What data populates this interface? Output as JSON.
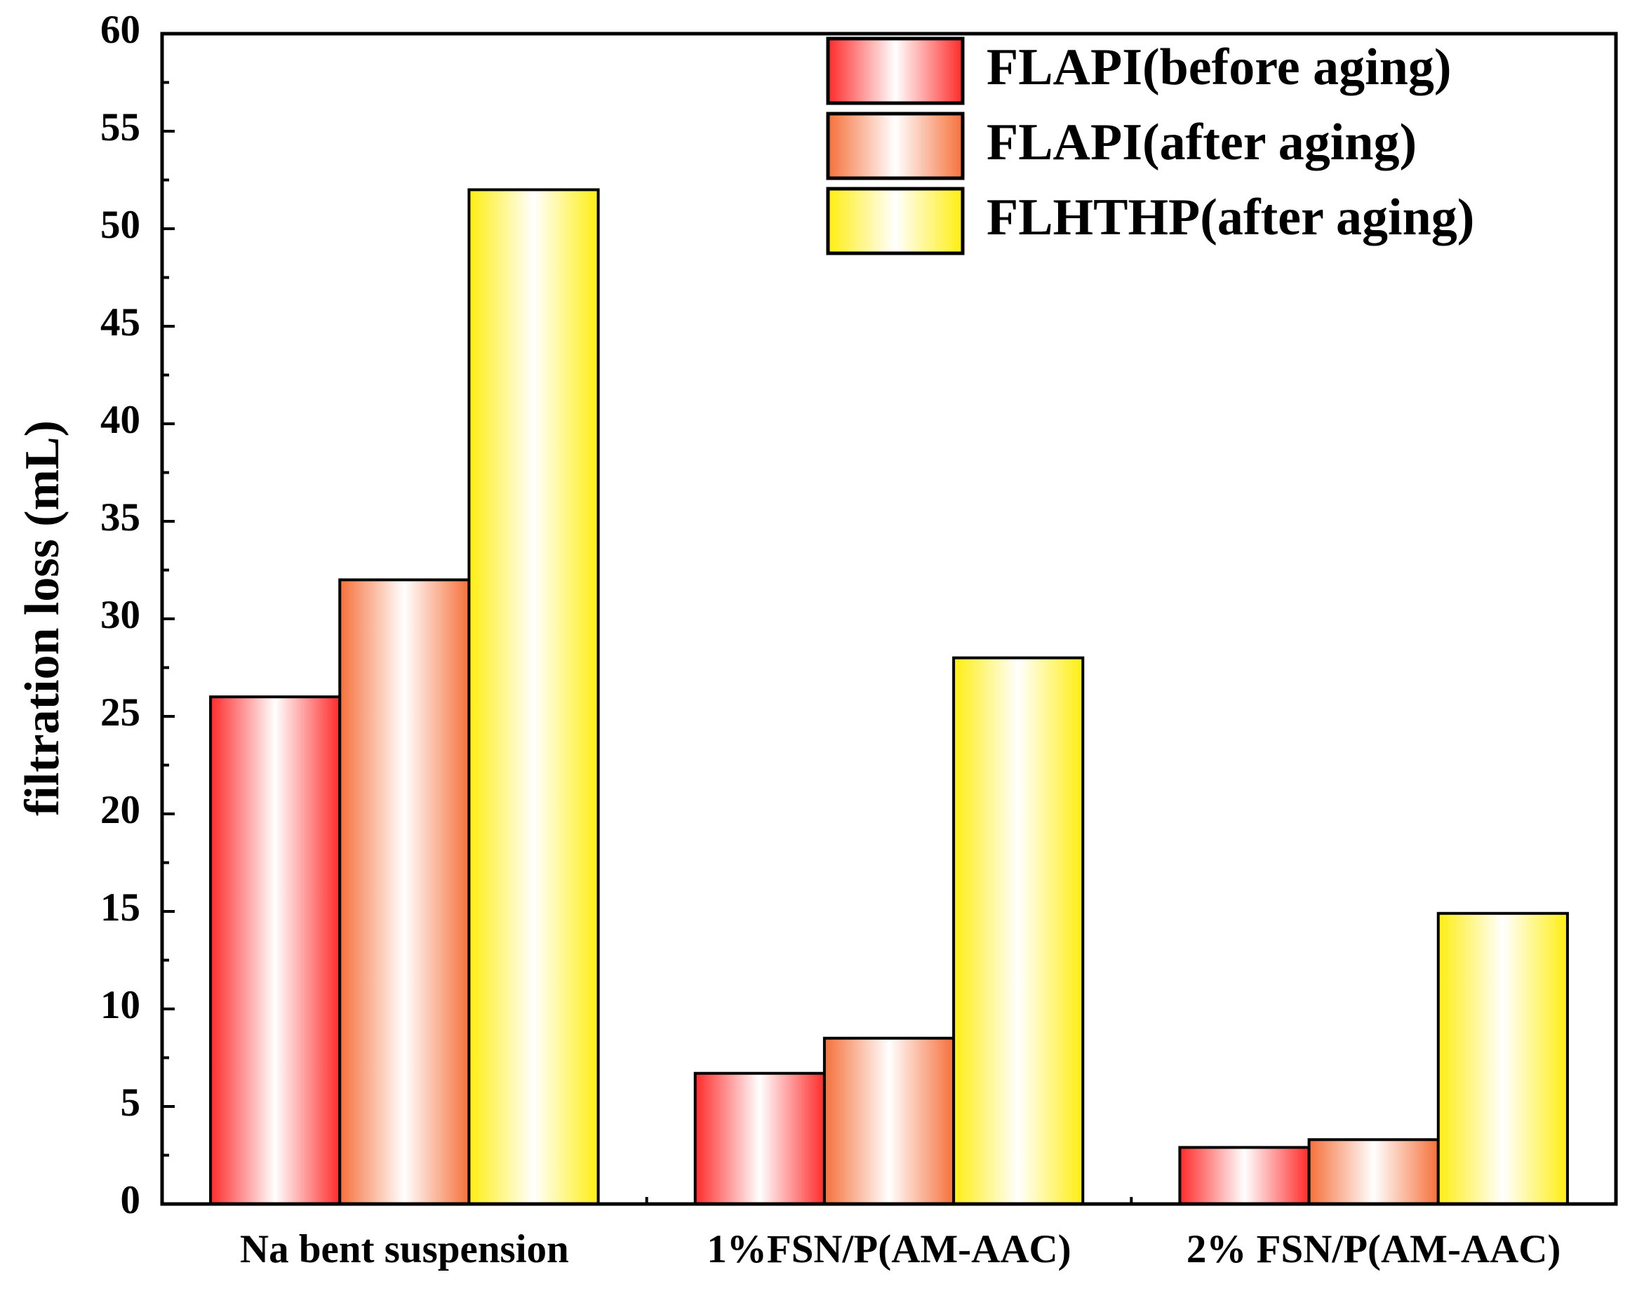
{
  "chart_data": {
    "type": "bar",
    "categories": [
      "Na bent suspension",
      "1%FSN/P(AM-AAC)",
      "2% FSN/P(AM-AAC)"
    ],
    "series": [
      {
        "name": "FLAPI(before aging)",
        "color": "#ff2a2a",
        "values": [
          26,
          6.7,
          2.9
        ]
      },
      {
        "name": "FLAPI(after aging)",
        "color": "#f5703a",
        "values": [
          32,
          8.5,
          3.3
        ]
      },
      {
        "name": "FLHTHP(after aging)",
        "color": "#ffee10",
        "values": [
          52,
          28,
          14.9
        ]
      }
    ],
    "ylabel": "filtration loss (mL)",
    "ylim": [
      0,
      60
    ],
    "yticks": [
      0,
      5,
      10,
      15,
      20,
      25,
      30,
      35,
      40,
      45,
      50,
      55,
      60
    ],
    "legend": "upper right"
  }
}
